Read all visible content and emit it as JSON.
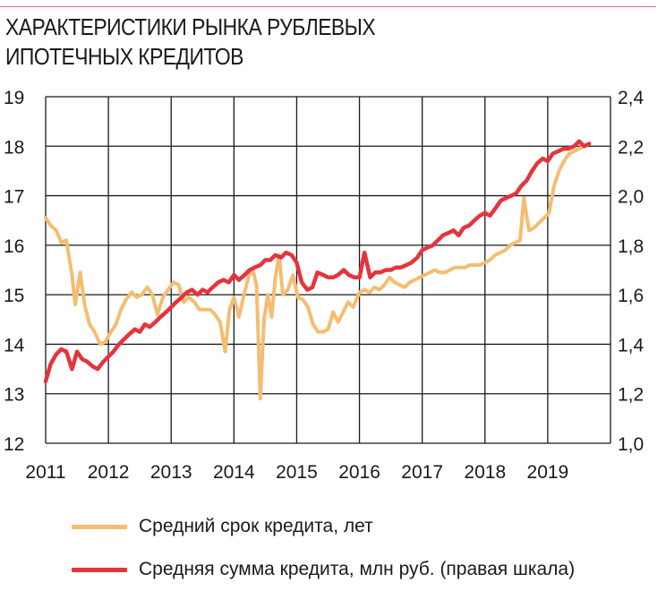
{
  "colors": {
    "accent_rule": "#e56d73",
    "term_series": "#f5bd72",
    "amount_series": "#e5343d",
    "grid": "#1a1a1a"
  },
  "title_lines": [
    "ХАРАКТЕРИСТИКИ РЫНКА РУБЛЕВЫХ",
    "ИПОТЕЧНЫХ КРЕДИТОВ"
  ],
  "legend": [
    {
      "label": "Средний срок кредита, лет",
      "color": "#f5bd72"
    },
    {
      "label": "Средняя сумма кредита, млн руб. (правая шкала)",
      "color": "#e5343d"
    }
  ],
  "chart_data": {
    "type": "line",
    "title": "ХАРАКТЕРИСТИКИ РЫНКА РУБЛЕВЫХ ИПОТЕЧНЫХ КРЕДИТОВ",
    "x_range": [
      2011.0,
      2020.0
    ],
    "x_ticks": [
      "2011",
      "2012",
      "2013",
      "2014",
      "2015",
      "2016",
      "2017",
      "2018",
      "2019"
    ],
    "y_left": {
      "range": [
        12,
        19
      ],
      "ticks": [
        "12",
        "13",
        "14",
        "15",
        "16",
        "17",
        "18",
        "19"
      ]
    },
    "y_right": {
      "range": [
        1.0,
        2.4
      ],
      "ticks": [
        "1,0",
        "1,2",
        "1,4",
        "1,6",
        "1,8",
        "2,0",
        "2,2",
        "2,4"
      ]
    },
    "grid": true,
    "legend_position": "bottom",
    "series": [
      {
        "name": "Средний срок кредита, лет",
        "axis": "left",
        "color": "#f5bd72",
        "points": [
          [
            2011.0,
            16.55
          ],
          [
            2011.08,
            16.4
          ],
          [
            2011.17,
            16.3
          ],
          [
            2011.25,
            16.05
          ],
          [
            2011.33,
            16.1
          ],
          [
            2011.42,
            15.4
          ],
          [
            2011.47,
            14.8
          ],
          [
            2011.55,
            15.45
          ],
          [
            2011.62,
            14.8
          ],
          [
            2011.7,
            14.4
          ],
          [
            2011.78,
            14.25
          ],
          [
            2011.87,
            14.0
          ],
          [
            2011.95,
            14.05
          ],
          [
            2012.04,
            14.25
          ],
          [
            2012.12,
            14.4
          ],
          [
            2012.2,
            14.7
          ],
          [
            2012.28,
            14.9
          ],
          [
            2012.37,
            15.05
          ],
          [
            2012.45,
            14.95
          ],
          [
            2012.53,
            15.0
          ],
          [
            2012.62,
            15.15
          ],
          [
            2012.7,
            15.0
          ],
          [
            2012.78,
            14.6
          ],
          [
            2012.87,
            14.95
          ],
          [
            2012.95,
            15.1
          ],
          [
            2013.04,
            15.25
          ],
          [
            2013.12,
            15.2
          ],
          [
            2013.2,
            14.85
          ],
          [
            2013.28,
            14.95
          ],
          [
            2013.37,
            14.85
          ],
          [
            2013.45,
            14.7
          ],
          [
            2013.53,
            14.7
          ],
          [
            2013.62,
            14.7
          ],
          [
            2013.7,
            14.6
          ],
          [
            2013.78,
            14.45
          ],
          [
            2013.86,
            13.85
          ],
          [
            2013.93,
            14.7
          ],
          [
            2014.0,
            14.95
          ],
          [
            2014.08,
            14.55
          ],
          [
            2014.16,
            15.0
          ],
          [
            2014.24,
            15.4
          ],
          [
            2014.3,
            15.5
          ],
          [
            2014.36,
            15.2
          ],
          [
            2014.42,
            12.9
          ],
          [
            2014.48,
            14.5
          ],
          [
            2014.54,
            15.0
          ],
          [
            2014.6,
            14.55
          ],
          [
            2014.66,
            15.35
          ],
          [
            2014.72,
            15.8
          ],
          [
            2014.78,
            15.0
          ],
          [
            2014.86,
            15.1
          ],
          [
            2014.94,
            15.4
          ],
          [
            2015.02,
            14.95
          ],
          [
            2015.1,
            14.9
          ],
          [
            2015.18,
            14.75
          ],
          [
            2015.26,
            14.4
          ],
          [
            2015.34,
            14.25
          ],
          [
            2015.42,
            14.25
          ],
          [
            2015.5,
            14.3
          ],
          [
            2015.58,
            14.65
          ],
          [
            2015.66,
            14.45
          ],
          [
            2015.74,
            14.65
          ],
          [
            2015.82,
            14.85
          ],
          [
            2015.9,
            14.75
          ],
          [
            2016.0,
            15.05
          ],
          [
            2016.08,
            15.1
          ],
          [
            2016.16,
            15.05
          ],
          [
            2016.24,
            15.15
          ],
          [
            2016.32,
            15.1
          ],
          [
            2016.4,
            15.2
          ],
          [
            2016.48,
            15.35
          ],
          [
            2016.56,
            15.25
          ],
          [
            2016.64,
            15.2
          ],
          [
            2016.72,
            15.15
          ],
          [
            2016.8,
            15.25
          ],
          [
            2016.88,
            15.3
          ],
          [
            2016.96,
            15.35
          ],
          [
            2017.04,
            15.4
          ],
          [
            2017.12,
            15.45
          ],
          [
            2017.2,
            15.5
          ],
          [
            2017.28,
            15.45
          ],
          [
            2017.36,
            15.45
          ],
          [
            2017.44,
            15.5
          ],
          [
            2017.52,
            15.55
          ],
          [
            2017.6,
            15.55
          ],
          [
            2017.68,
            15.55
          ],
          [
            2017.76,
            15.6
          ],
          [
            2017.84,
            15.6
          ],
          [
            2017.92,
            15.6
          ],
          [
            2018.0,
            15.65
          ],
          [
            2018.08,
            15.7
          ],
          [
            2018.16,
            15.8
          ],
          [
            2018.24,
            15.85
          ],
          [
            2018.32,
            15.9
          ],
          [
            2018.4,
            16.0
          ],
          [
            2018.48,
            16.05
          ],
          [
            2018.56,
            16.1
          ],
          [
            2018.62,
            16.95
          ],
          [
            2018.7,
            16.3
          ],
          [
            2018.78,
            16.35
          ],
          [
            2018.86,
            16.45
          ],
          [
            2018.94,
            16.55
          ],
          [
            2019.02,
            16.65
          ],
          [
            2019.1,
            17.2
          ],
          [
            2019.18,
            17.5
          ],
          [
            2019.26,
            17.7
          ],
          [
            2019.34,
            17.85
          ],
          [
            2019.42,
            17.9
          ],
          [
            2019.5,
            17.95
          ],
          [
            2019.58,
            18.0
          ],
          [
            2019.66,
            18.05
          ]
        ]
      },
      {
        "name": "Средняя сумма кредита, млн руб. (правая шкала)",
        "axis": "right",
        "color": "#e5343d",
        "points": [
          [
            2011.0,
            1.25
          ],
          [
            2011.08,
            1.32
          ],
          [
            2011.17,
            1.36
          ],
          [
            2011.25,
            1.38
          ],
          [
            2011.33,
            1.37
          ],
          [
            2011.42,
            1.3
          ],
          [
            2011.5,
            1.37
          ],
          [
            2011.58,
            1.34
          ],
          [
            2011.66,
            1.33
          ],
          [
            2011.75,
            1.31
          ],
          [
            2011.83,
            1.3
          ],
          [
            2011.92,
            1.33
          ],
          [
            2012.0,
            1.35
          ],
          [
            2012.08,
            1.37
          ],
          [
            2012.17,
            1.4
          ],
          [
            2012.25,
            1.42
          ],
          [
            2012.33,
            1.44
          ],
          [
            2012.42,
            1.46
          ],
          [
            2012.5,
            1.45
          ],
          [
            2012.58,
            1.48
          ],
          [
            2012.66,
            1.47
          ],
          [
            2012.75,
            1.49
          ],
          [
            2012.83,
            1.51
          ],
          [
            2012.92,
            1.53
          ],
          [
            2013.0,
            1.55
          ],
          [
            2013.08,
            1.57
          ],
          [
            2013.17,
            1.59
          ],
          [
            2013.25,
            1.61
          ],
          [
            2013.33,
            1.62
          ],
          [
            2013.42,
            1.6
          ],
          [
            2013.5,
            1.62
          ],
          [
            2013.58,
            1.61
          ],
          [
            2013.66,
            1.63
          ],
          [
            2013.75,
            1.65
          ],
          [
            2013.83,
            1.66
          ],
          [
            2013.92,
            1.65
          ],
          [
            2014.0,
            1.68
          ],
          [
            2014.08,
            1.66
          ],
          [
            2014.17,
            1.68
          ],
          [
            2014.25,
            1.7
          ],
          [
            2014.33,
            1.71
          ],
          [
            2014.42,
            1.72
          ],
          [
            2014.5,
            1.74
          ],
          [
            2014.58,
            1.74
          ],
          [
            2014.66,
            1.76
          ],
          [
            2014.75,
            1.75
          ],
          [
            2014.83,
            1.77
          ],
          [
            2014.92,
            1.76
          ],
          [
            2015.0,
            1.73
          ],
          [
            2015.08,
            1.65
          ],
          [
            2015.17,
            1.62
          ],
          [
            2015.25,
            1.63
          ],
          [
            2015.33,
            1.69
          ],
          [
            2015.42,
            1.68
          ],
          [
            2015.5,
            1.67
          ],
          [
            2015.58,
            1.67
          ],
          [
            2015.66,
            1.68
          ],
          [
            2015.75,
            1.7
          ],
          [
            2015.83,
            1.68
          ],
          [
            2015.92,
            1.67
          ],
          [
            2016.0,
            1.67
          ],
          [
            2016.08,
            1.77
          ],
          [
            2016.17,
            1.67
          ],
          [
            2016.25,
            1.69
          ],
          [
            2016.33,
            1.69
          ],
          [
            2016.42,
            1.7
          ],
          [
            2016.5,
            1.7
          ],
          [
            2016.58,
            1.71
          ],
          [
            2016.66,
            1.71
          ],
          [
            2016.75,
            1.72
          ],
          [
            2016.83,
            1.73
          ],
          [
            2016.92,
            1.75
          ],
          [
            2017.0,
            1.78
          ],
          [
            2017.08,
            1.79
          ],
          [
            2017.17,
            1.8
          ],
          [
            2017.25,
            1.82
          ],
          [
            2017.33,
            1.84
          ],
          [
            2017.42,
            1.85
          ],
          [
            2017.5,
            1.86
          ],
          [
            2017.58,
            1.84
          ],
          [
            2017.66,
            1.87
          ],
          [
            2017.75,
            1.88
          ],
          [
            2017.83,
            1.9
          ],
          [
            2017.92,
            1.92
          ],
          [
            2018.0,
            1.93
          ],
          [
            2018.08,
            1.92
          ],
          [
            2018.17,
            1.95
          ],
          [
            2018.25,
            1.98
          ],
          [
            2018.33,
            1.99
          ],
          [
            2018.42,
            2.0
          ],
          [
            2018.5,
            2.01
          ],
          [
            2018.58,
            2.04
          ],
          [
            2018.66,
            2.06
          ],
          [
            2018.75,
            2.1
          ],
          [
            2018.83,
            2.13
          ],
          [
            2018.92,
            2.15
          ],
          [
            2019.0,
            2.14
          ],
          [
            2019.08,
            2.17
          ],
          [
            2019.17,
            2.18
          ],
          [
            2019.25,
            2.19
          ],
          [
            2019.33,
            2.19
          ],
          [
            2019.42,
            2.2
          ],
          [
            2019.5,
            2.22
          ],
          [
            2019.58,
            2.2
          ],
          [
            2019.66,
            2.21
          ]
        ]
      }
    ]
  }
}
